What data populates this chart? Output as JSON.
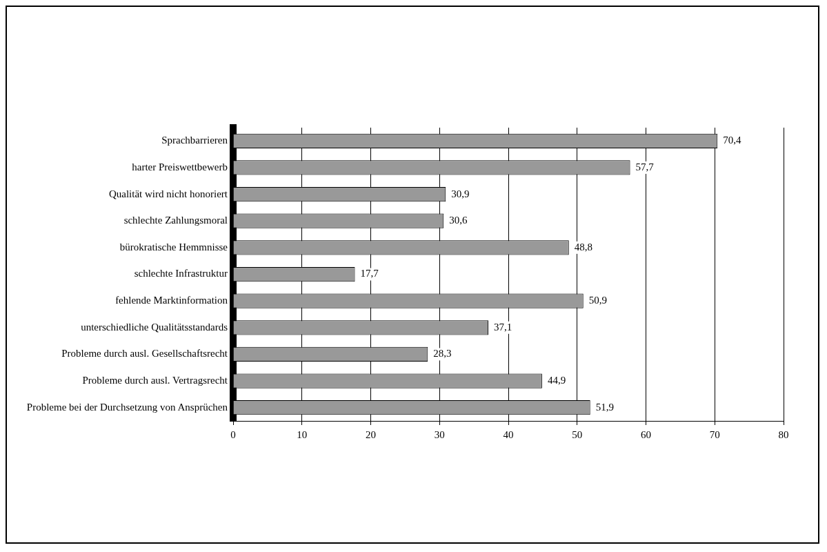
{
  "chart_data": {
    "type": "bar",
    "orientation": "horizontal",
    "categories": [
      "Sprachbarrieren",
      "harter Preiswettbewerb",
      "Qualität wird nicht honoriert",
      "schlechte Zahlungsmoral",
      "bürokratische Hemmnisse",
      "schlechte Infrastruktur",
      "fehlende Marktinformation",
      "unterschiedliche Qualitätsstandards",
      "Probleme durch ausl. Gesellschaftsrecht",
      "Probleme durch ausl. Vertragsrecht",
      "Probleme bei der Durchsetzung von Ansprüchen"
    ],
    "values": [
      70.4,
      57.7,
      30.9,
      30.6,
      48.8,
      17.7,
      50.9,
      37.1,
      28.3,
      44.9,
      51.9
    ],
    "value_labels": [
      "70,4",
      "57,7",
      "30,9",
      "30,6",
      "48,8",
      "17,7",
      "50,9",
      "37,1",
      "28,3",
      "44,9",
      "51,9"
    ],
    "color": "#999999",
    "xlim": [
      0,
      80
    ],
    "xticks": [
      0,
      10,
      20,
      30,
      40,
      50,
      60,
      70,
      80
    ],
    "grid": "x",
    "legend": false
  }
}
